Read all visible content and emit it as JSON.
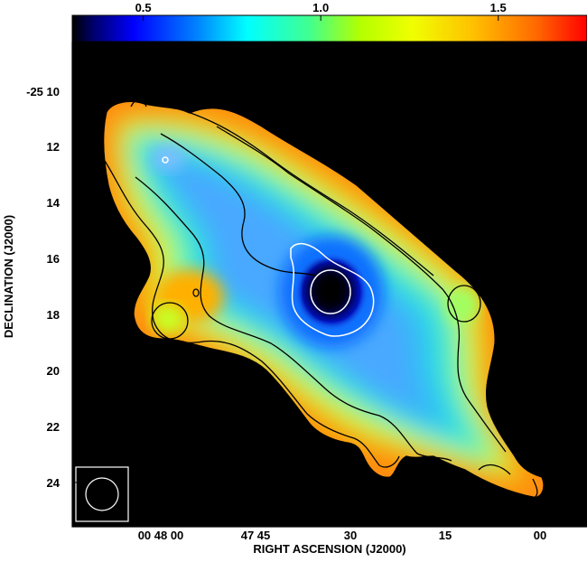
{
  "colorbar": {
    "ticks": [
      {
        "label": "0.5",
        "value": 0.5
      },
      {
        "label": "1.0",
        "value": 1.0
      },
      {
        "label": "1.5",
        "value": 1.5
      }
    ],
    "range": [
      0.3,
      1.75
    ],
    "colormap": [
      "#000000",
      "#00007f",
      "#0000ff",
      "#007fff",
      "#00ffff",
      "#7fff7f",
      "#c8ff00",
      "#ffff00",
      "#ff7f00",
      "#ff0000"
    ]
  },
  "axes": {
    "xlabel": "RIGHT ASCENSION (J2000)",
    "ylabel": "DECLINATION (J2000)",
    "x_ticks": [
      "00 48 00",
      "47 45",
      "30",
      "15",
      "00"
    ],
    "y_ticks": [
      "-25 10",
      "12",
      "14",
      "16",
      "18",
      "20",
      "22",
      "24"
    ]
  },
  "colors": {
    "background": "#000000",
    "frame": "#000000",
    "contour_dark": "#000000",
    "contour_light": "#ffffff",
    "beam": "#ffffff"
  }
}
